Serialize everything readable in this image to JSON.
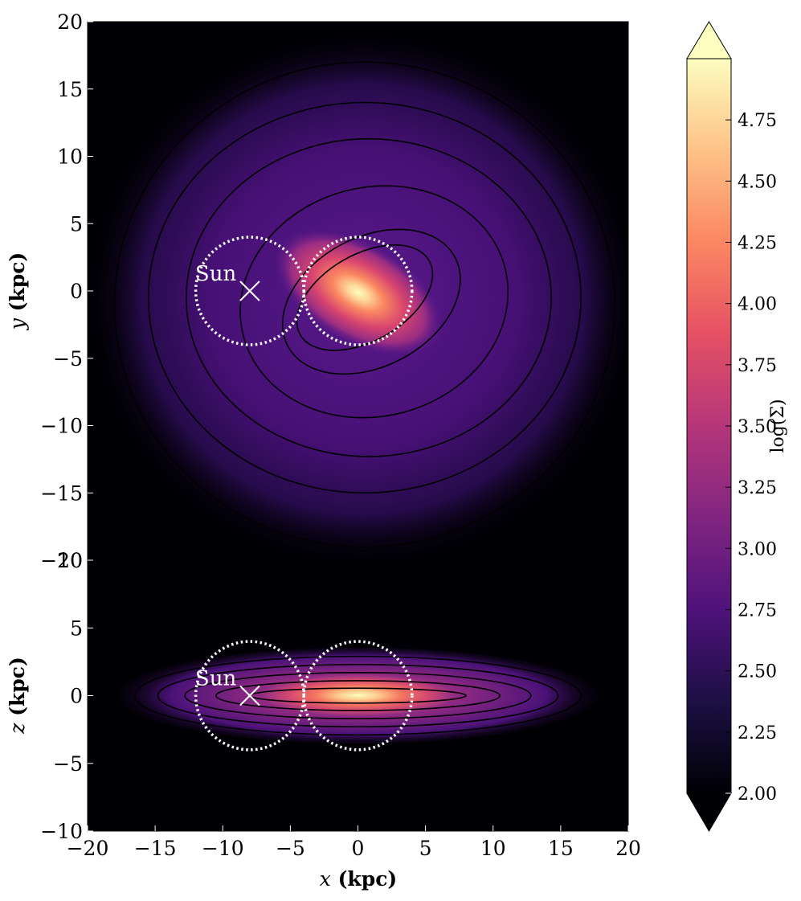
{
  "chart_data": [
    {
      "type": "heatmap",
      "panel": "face-on",
      "xlabel": "",
      "ylabel_var": "y",
      "ylabel_unit": " (kpc)",
      "xlim": [
        -20,
        20
      ],
      "ylim": [
        -20,
        20
      ],
      "yticks": [
        "−20",
        "−15",
        "−10",
        "−5",
        "0",
        "5",
        "10",
        "15",
        "20"
      ],
      "ytick_values": [
        -20,
        -15,
        -10,
        -5,
        0,
        5,
        10,
        15,
        20
      ],
      "contours": [
        {
          "a": 18.5,
          "b": 18.0,
          "angle": 0,
          "cx": 0.5,
          "cy": -1.0
        },
        {
          "a": 16.0,
          "b": 14.5,
          "angle": 0,
          "cx": 0.5,
          "cy": -0.5
        },
        {
          "a": 13.5,
          "b": 11.8,
          "angle": 0,
          "cx": 0.8,
          "cy": -0.5
        },
        {
          "a": 10.0,
          "b": 8.5,
          "angle": -15,
          "cx": 1.2,
          "cy": -0.8
        },
        {
          "a": 7.0,
          "b": 4.8,
          "angle": -28,
          "cx": 1.0,
          "cy": -0.8
        },
        {
          "a": 5.5,
          "b": 3.2,
          "angle": -30,
          "cx": 0.5,
          "cy": -0.5
        }
      ],
      "circles": [
        {
          "cx": -8,
          "cy": 0,
          "r": 4
        },
        {
          "cx": 0,
          "cy": 0,
          "r": 4
        }
      ],
      "sun": {
        "x": -8,
        "y": 0,
        "label": "Sun"
      }
    },
    {
      "type": "heatmap",
      "panel": "edge-on",
      "xlabel_var": "x",
      "xlabel_unit": " (kpc)",
      "ylabel_var": "z",
      "ylabel_unit": " (kpc)",
      "xlim": [
        -20,
        20
      ],
      "ylim": [
        -10,
        10
      ],
      "xticks": [
        "−20",
        "−15",
        "−10",
        "−5",
        "0",
        "5",
        "10",
        "15",
        "20"
      ],
      "xtick_values": [
        -20,
        -15,
        -10,
        -5,
        0,
        5,
        10,
        15,
        20
      ],
      "yticks": [
        "−10",
        "−5",
        "0",
        "5",
        "10"
      ],
      "ytick_values": [
        -10,
        -5,
        0,
        5,
        10
      ],
      "contours": [
        {
          "a": 18.0,
          "b": 3.6
        },
        {
          "a": 16.5,
          "b": 2.9
        },
        {
          "a": 14.8,
          "b": 2.3
        },
        {
          "a": 12.8,
          "b": 1.7
        },
        {
          "a": 10.5,
          "b": 1.1
        },
        {
          "a": 8.0,
          "b": 0.55
        }
      ],
      "circles": [
        {
          "cx": -8,
          "cy": 0,
          "r": 4
        },
        {
          "cx": 0,
          "cy": 0,
          "r": 4
        }
      ],
      "sun": {
        "x": -8,
        "y": 0,
        "label": "Sun"
      }
    }
  ],
  "colorbar": {
    "label": "log(Σ)",
    "ticks": [
      "2.00",
      "2.25",
      "2.50",
      "2.75",
      "3.00",
      "3.25",
      "3.50",
      "3.75",
      "4.00",
      "4.25",
      "4.50",
      "4.75"
    ],
    "tick_values": [
      2.0,
      2.25,
      2.5,
      2.75,
      3.0,
      3.25,
      3.5,
      3.75,
      4.0,
      4.25,
      4.5,
      4.75
    ],
    "range": [
      2.0,
      5.0
    ],
    "extend": "both",
    "colormap": "magma",
    "stops": [
      "#000004",
      "#1c1044",
      "#4f127b",
      "#812581",
      "#b5367a",
      "#e55064",
      "#fb8761",
      "#fec287",
      "#fcfdbf"
    ]
  }
}
